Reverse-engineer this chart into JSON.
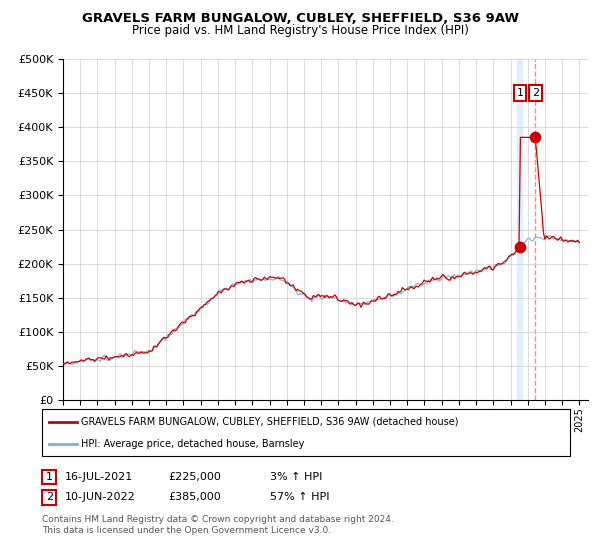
{
  "title": "GRAVELS FARM BUNGALOW, CUBLEY, SHEFFIELD, S36 9AW",
  "subtitle": "Price paid vs. HM Land Registry's House Price Index (HPI)",
  "legend_line1": "GRAVELS FARM BUNGALOW, CUBLEY, SHEFFIELD, S36 9AW (detached house)",
  "legend_line2": "HPI: Average price, detached house, Barnsley",
  "sale1_date": "16-JUL-2021",
  "sale1_price": "£225,000",
  "sale1_hpi": "3% ↑ HPI",
  "sale2_date": "10-JUN-2022",
  "sale2_price": "£385,000",
  "sale2_hpi": "57% ↑ HPI",
  "footnote1": "Contains HM Land Registry data © Crown copyright and database right 2024.",
  "footnote2": "This data is licensed under the Open Government Licence v3.0.",
  "ylim_max": 500000,
  "yticks": [
    0,
    50000,
    100000,
    150000,
    200000,
    250000,
    300000,
    350000,
    400000,
    450000,
    500000
  ],
  "year_start": 1995,
  "year_end": 2025,
  "sale1_year": 2021.54,
  "sale2_year": 2022.44,
  "sale1_value": 225000,
  "sale2_value": 385000,
  "hpi_color": "#7bafd4",
  "red_color": "#cc0000",
  "dashed_color": "#ff8888",
  "shade_color": "#ddeeff",
  "bg_color": "#ffffff",
  "grid_color": "#cccccc"
}
